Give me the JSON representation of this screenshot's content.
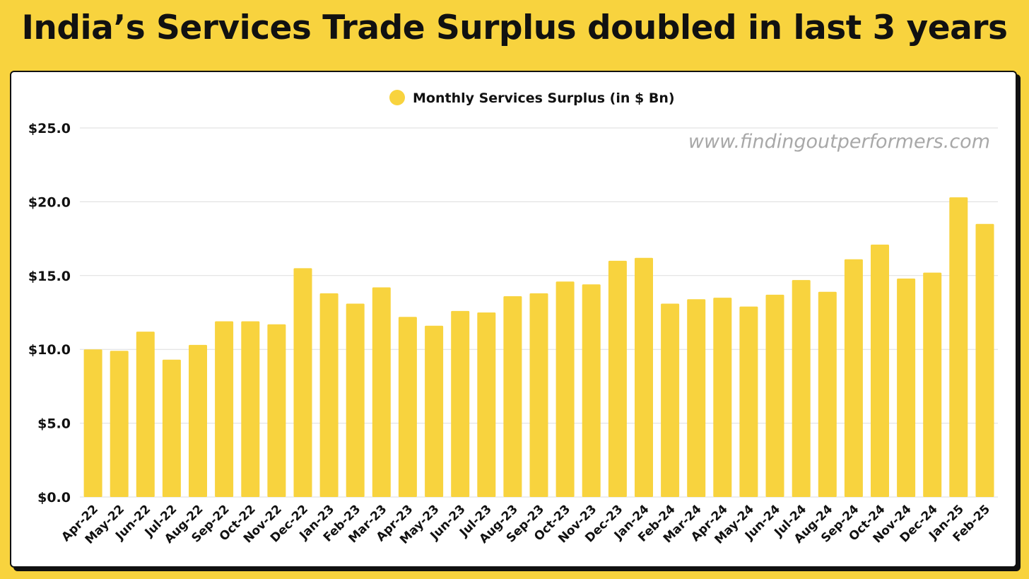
{
  "headline": "India’s Services Trade Surplus doubled in last 3 years",
  "watermark": "www.findingoutperformers.com",
  "colors": {
    "background": "#F8D33E",
    "bar": "#F8D33E",
    "grid": "#DDDDDD",
    "text": "#111111"
  },
  "chart_data": {
    "type": "bar",
    "title": "",
    "xlabel": "",
    "ylabel": "",
    "ylim": [
      0,
      25
    ],
    "yticks": [
      0,
      5,
      10,
      15,
      20,
      25
    ],
    "ytick_labels": [
      "$0.0",
      "$5.0",
      "$10.0",
      "$15.0",
      "$20.0",
      "$25.0"
    ],
    "grid": true,
    "legend_position": "top-center",
    "categories": [
      "Apr-22",
      "May-22",
      "Jun-22",
      "Jul-22",
      "Aug-22",
      "Sep-22",
      "Oct-22",
      "Nov-22",
      "Dec-22",
      "Jan-23",
      "Feb-23",
      "Mar-23",
      "Apr-23",
      "May-23",
      "Jun-23",
      "Jul-23",
      "Aug-23",
      "Sep-23",
      "Oct-23",
      "Nov-23",
      "Dec-23",
      "Jan-24",
      "Feb-24",
      "Mar-24",
      "Apr-24",
      "May-24",
      "Jun-24",
      "Jul-24",
      "Aug-24",
      "Sep-24",
      "Oct-24",
      "Nov-24",
      "Dec-24",
      "Jan-25",
      "Feb-25"
    ],
    "series": [
      {
        "name": "Monthly Services Surplus (in $ Bn)",
        "values": [
          10.0,
          9.9,
          11.2,
          9.3,
          10.3,
          11.9,
          11.9,
          11.7,
          15.5,
          13.8,
          13.1,
          14.2,
          12.2,
          11.6,
          12.6,
          12.5,
          13.6,
          13.8,
          14.6,
          14.4,
          16.0,
          16.2,
          13.1,
          13.4,
          13.5,
          12.9,
          13.7,
          14.7,
          13.9,
          16.1,
          17.1,
          14.8,
          15.2,
          20.3,
          18.5
        ]
      }
    ]
  }
}
